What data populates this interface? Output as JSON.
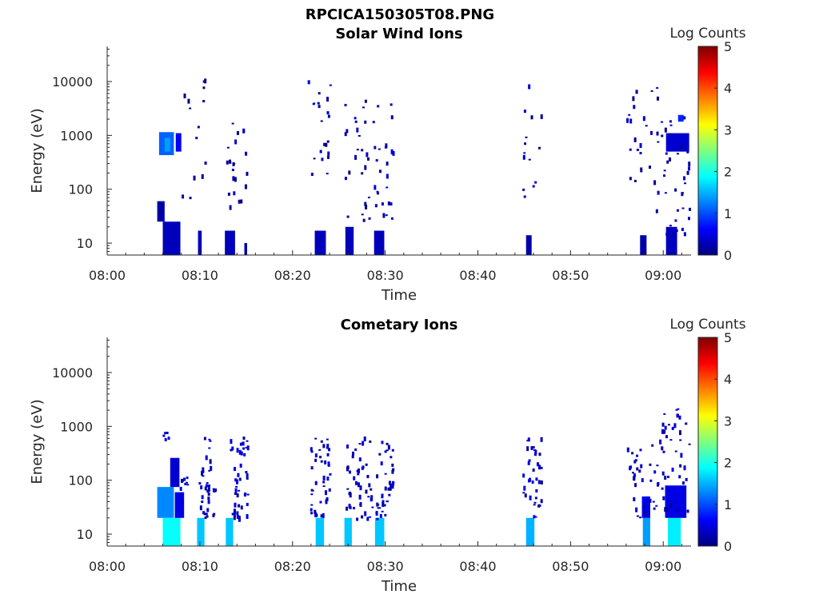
{
  "figure_title": "RPCICA150305T08.PNG",
  "colormap": [
    "#00007f",
    "#0000ff",
    "#007fff",
    "#00ffff",
    "#7fff7f",
    "#ffff00",
    "#ff7f00",
    "#ff0000",
    "#7f0000"
  ],
  "chart_data": [
    {
      "type": "heatmap",
      "title": "Solar Wind Ions",
      "xlabel": "Time",
      "ylabel": "Energy (eV)",
      "x_ticks": [
        "08:00",
        "08:10",
        "08:20",
        "08:30",
        "08:40",
        "08:50",
        "09:00"
      ],
      "y_ticks": [
        "10",
        "100",
        "1000",
        "10000"
      ],
      "y_scale": "log",
      "ylim": [
        6,
        45000
      ],
      "xlim_minutes": [
        0,
        63
      ],
      "colorbar_label": "Log Counts",
      "colorbar_ticks": [
        "0",
        "1",
        "2",
        "3",
        "4",
        "5"
      ],
      "clim": [
        0,
        5
      ],
      "patches": [
        {
          "t0": 5.6,
          "t1": 7.2,
          "e0": 430,
          "e1": 1150,
          "v": 1.1
        },
        {
          "t0": 6.2,
          "t1": 6.8,
          "e0": 500,
          "e1": 900,
          "v": 1.4
        },
        {
          "t0": 7.4,
          "t1": 8.0,
          "e0": 500,
          "e1": 1100,
          "v": 0.6
        },
        {
          "t0": 5.4,
          "t1": 6.2,
          "e0": 25,
          "e1": 60,
          "v": 0.2
        },
        {
          "t0": 6.0,
          "t1": 7.9,
          "e0": 6,
          "e1": 25,
          "v": 0.3
        },
        {
          "t0": 9.8,
          "t1": 10.2,
          "e0": 6,
          "e1": 17,
          "v": 0.3
        },
        {
          "t0": 12.7,
          "t1": 13.8,
          "e0": 6,
          "e1": 17,
          "v": 0.3
        },
        {
          "t0": 14.8,
          "t1": 15.1,
          "e0": 6,
          "e1": 10,
          "v": 0.2
        },
        {
          "t0": 22.4,
          "t1": 23.6,
          "e0": 6,
          "e1": 17,
          "v": 0.3
        },
        {
          "t0": 25.7,
          "t1": 26.6,
          "e0": 6,
          "e1": 20,
          "v": 0.3
        },
        {
          "t0": 28.8,
          "t1": 29.9,
          "e0": 6,
          "e1": 17,
          "v": 0.3
        },
        {
          "t0": 45.2,
          "t1": 45.8,
          "e0": 6,
          "e1": 14,
          "v": 0.2
        },
        {
          "t0": 57.5,
          "t1": 58.2,
          "e0": 6,
          "e1": 14,
          "v": 0.2
        },
        {
          "t0": 60.3,
          "t1": 61.5,
          "e0": 6,
          "e1": 20,
          "v": 0.3
        },
        {
          "t0": 60.3,
          "t1": 62.8,
          "e0": 500,
          "e1": 1100,
          "v": 0.4
        },
        {
          "t0": 61.6,
          "t1": 62.2,
          "e0": 1800,
          "e1": 2400,
          "v": 0.8
        }
      ],
      "speckle_columns": [
        {
          "t0": 8.0,
          "t1": 10.5,
          "e0": 60,
          "e1": 15000,
          "n": 14,
          "v": 0.2
        },
        {
          "t0": 12.8,
          "t1": 15.1,
          "e0": 45,
          "e1": 4500,
          "n": 22,
          "v": 0.2
        },
        {
          "t0": 21.5,
          "t1": 24.0,
          "e0": 200,
          "e1": 12000,
          "n": 22,
          "v": 0.2
        },
        {
          "t0": 25.5,
          "t1": 28.5,
          "e0": 25,
          "e1": 5000,
          "n": 26,
          "v": 0.2
        },
        {
          "t0": 28.5,
          "t1": 30.8,
          "e0": 25,
          "e1": 4500,
          "n": 26,
          "v": 0.3
        },
        {
          "t0": 44.8,
          "t1": 46.8,
          "e0": 60,
          "e1": 11000,
          "n": 14,
          "v": 0.2
        },
        {
          "t0": 56.0,
          "t1": 59.5,
          "e0": 25,
          "e1": 12000,
          "n": 26,
          "v": 0.2
        },
        {
          "t0": 59.5,
          "t1": 62.8,
          "e0": 15,
          "e1": 3000,
          "n": 38,
          "v": 0.3
        }
      ]
    },
    {
      "type": "heatmap",
      "title": "Cometary Ions",
      "xlabel": "Time",
      "ylabel": "Energy (eV)",
      "x_ticks": [
        "08:00",
        "08:10",
        "08:20",
        "08:30",
        "08:40",
        "08:50",
        "09:00"
      ],
      "y_ticks": [
        "10",
        "100",
        "1000",
        "10000"
      ],
      "y_scale": "log",
      "ylim": [
        6,
        45000
      ],
      "xlim_minutes": [
        0,
        63
      ],
      "colorbar_label": "Log Counts",
      "colorbar_ticks": [
        "0",
        "1",
        "2",
        "3",
        "4",
        "5"
      ],
      "clim": [
        0,
        5
      ],
      "patches": [
        {
          "t0": 5.4,
          "t1": 7.2,
          "e0": 20,
          "e1": 75,
          "v": 1.3
        },
        {
          "t0": 6.0,
          "t1": 7.9,
          "e0": 6,
          "e1": 20,
          "v": 1.9
        },
        {
          "t0": 6.8,
          "t1": 7.8,
          "e0": 75,
          "e1": 260,
          "v": 0.4
        },
        {
          "t0": 7.3,
          "t1": 8.3,
          "e0": 20,
          "e1": 60,
          "v": 0.5
        },
        {
          "t0": 9.7,
          "t1": 10.5,
          "e0": 6,
          "e1": 20,
          "v": 1.6
        },
        {
          "t0": 12.8,
          "t1": 13.6,
          "e0": 6,
          "e1": 20,
          "v": 1.6
        },
        {
          "t0": 22.5,
          "t1": 23.4,
          "e0": 6,
          "e1": 20,
          "v": 1.6
        },
        {
          "t0": 25.6,
          "t1": 26.4,
          "e0": 6,
          "e1": 20,
          "v": 1.6
        },
        {
          "t0": 28.9,
          "t1": 29.9,
          "e0": 6,
          "e1": 20,
          "v": 1.6
        },
        {
          "t0": 45.2,
          "t1": 46.1,
          "e0": 6,
          "e1": 20,
          "v": 1.5
        },
        {
          "t0": 57.8,
          "t1": 58.6,
          "e0": 6,
          "e1": 20,
          "v": 1.4
        },
        {
          "t0": 60.5,
          "t1": 61.9,
          "e0": 6,
          "e1": 20,
          "v": 1.8
        },
        {
          "t0": 57.7,
          "t1": 58.6,
          "e0": 20,
          "e1": 50,
          "v": 0.5
        },
        {
          "t0": 60.2,
          "t1": 62.5,
          "e0": 20,
          "e1": 80,
          "v": 0.5
        }
      ],
      "speckle_columns": [
        {
          "t0": 5.8,
          "t1": 6.6,
          "e0": 600,
          "e1": 850,
          "n": 5,
          "v": 0.3
        },
        {
          "t0": 7.6,
          "t1": 8.6,
          "e0": 40,
          "e1": 150,
          "n": 10,
          "v": 0.3
        },
        {
          "t0": 9.8,
          "t1": 11.6,
          "e0": 20,
          "e1": 650,
          "n": 40,
          "v": 0.3
        },
        {
          "t0": 13.2,
          "t1": 15.1,
          "e0": 20,
          "e1": 650,
          "n": 48,
          "v": 0.3
        },
        {
          "t0": 21.8,
          "t1": 24.0,
          "e0": 20,
          "e1": 650,
          "n": 42,
          "v": 0.3
        },
        {
          "t0": 25.7,
          "t1": 28.6,
          "e0": 20,
          "e1": 650,
          "n": 48,
          "v": 0.3
        },
        {
          "t0": 28.9,
          "t1": 30.8,
          "e0": 20,
          "e1": 550,
          "n": 40,
          "v": 0.3
        },
        {
          "t0": 44.8,
          "t1": 46.8,
          "e0": 20,
          "e1": 700,
          "n": 36,
          "v": 0.3
        },
        {
          "t0": 56.0,
          "t1": 59.5,
          "e0": 20,
          "e1": 500,
          "n": 36,
          "v": 0.3
        },
        {
          "t0": 59.5,
          "t1": 62.8,
          "e0": 20,
          "e1": 2200,
          "n": 48,
          "v": 0.3
        }
      ]
    }
  ]
}
